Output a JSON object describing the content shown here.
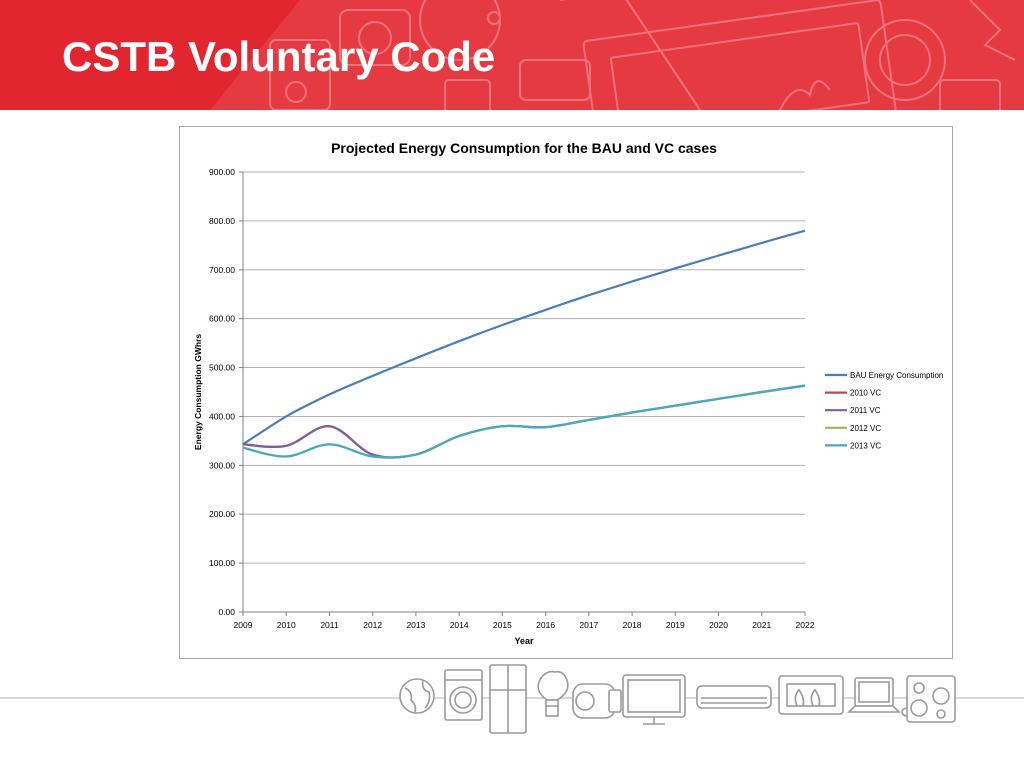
{
  "slide": {
    "title": "CSTB Voluntary Code"
  },
  "colors": {
    "header": "#e2262f",
    "grid": "#b0b0b0",
    "axis": "#808080"
  },
  "chart_data": {
    "type": "line",
    "title": "Projected Energy Consumption for the BAU and VC cases",
    "xlabel": "Year",
    "ylabel": "Energy Consumption GWhrs",
    "x": [
      2009,
      2010,
      2011,
      2012,
      2013,
      2014,
      2015,
      2016,
      2017,
      2018,
      2019,
      2020,
      2021,
      2022
    ],
    "x_tick_labels": [
      "2009",
      "2010",
      "2011",
      "2012",
      "2013",
      "2014",
      "2015",
      "2016",
      "2017",
      "2018",
      "2019",
      "2020",
      "2021",
      "2022"
    ],
    "y_tick_labels": [
      "0.00",
      "100.00",
      "200.00",
      "300.00",
      "400.00",
      "500.00",
      "600.00",
      "700.00",
      "800.00",
      "900.00"
    ],
    "ylim": [
      0,
      900
    ],
    "grid": true,
    "legend_position": "right",
    "series": [
      {
        "name": "BAU Energy Consumption",
        "color": "#4a7ebb",
        "values": [
          343,
          400,
          445,
          483,
          519,
          554,
          587,
          618,
          648,
          676,
          703,
          729,
          755,
          780
        ]
      },
      {
        "name": "2010 VC",
        "color": "#be4b48",
        "values": [
          343,
          340,
          380,
          322,
          322,
          360,
          380,
          378,
          393,
          408,
          422,
          436,
          450,
          463
        ]
      },
      {
        "name": "2011 VC",
        "color": "#7d5fa0",
        "values": [
          343,
          340,
          380,
          322,
          322,
          360,
          380,
          378,
          393,
          408,
          422,
          436,
          450,
          463
        ]
      },
      {
        "name": "2012 VC",
        "color": "#98b954",
        "values": [
          336,
          318,
          343,
          318,
          322,
          360,
          380,
          378,
          393,
          408,
          422,
          436,
          450,
          463
        ]
      },
      {
        "name": "2013 VC",
        "color": "#46aac5",
        "values": [
          336,
          318,
          343,
          318,
          322,
          360,
          380,
          378,
          393,
          408,
          422,
          436,
          450,
          463
        ]
      }
    ]
  }
}
